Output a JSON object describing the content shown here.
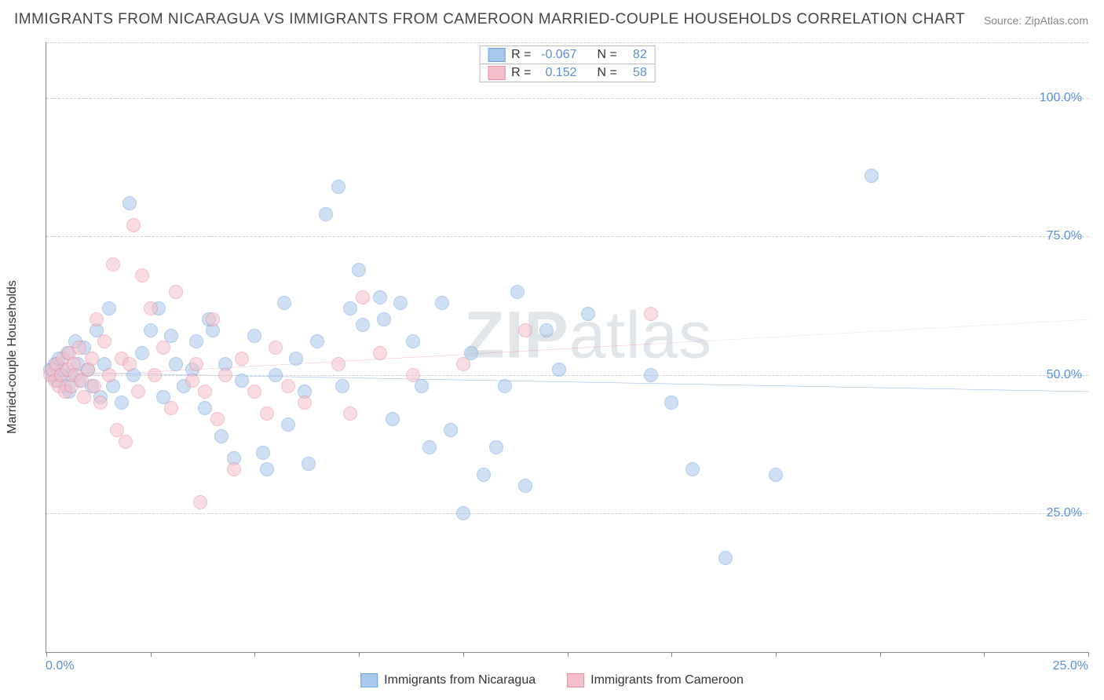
{
  "title": "IMMIGRANTS FROM NICARAGUA VS IMMIGRANTS FROM CAMEROON MARRIED-COUPLE HOUSEHOLDS CORRELATION CHART",
  "source": "Source: ZipAtlas.com",
  "y_axis_title": "Married-couple Households",
  "watermark_bold": "ZIP",
  "watermark_light": "atlas",
  "chart": {
    "type": "scatter",
    "xlim": [
      0,
      25
    ],
    "ylim": [
      0,
      110
    ],
    "x_ticks": [
      0,
      2.5,
      5,
      7.5,
      10,
      12.5,
      15,
      17.5,
      20,
      22.5,
      25
    ],
    "x_tick_labels": {
      "0": "0.0%",
      "25": "25.0%"
    },
    "y_gridlines": [
      25,
      50,
      75,
      100,
      110
    ],
    "y_tick_labels": {
      "25": "25.0%",
      "50": "50.0%",
      "75": "75.0%",
      "100": "100.0%"
    },
    "background_color": "#ffffff",
    "grid_color": "#cccccc",
    "axis_color": "#888888",
    "tick_label_color": "#5b8fd6",
    "marker_radius": 9,
    "marker_opacity": 0.55,
    "series": [
      {
        "name": "Immigrants from Nicaragua",
        "fill_color": "#a8c8ec",
        "stroke_color": "#6fa3db",
        "R": "-0.067",
        "N": "82",
        "trend": {
          "y_start": 50.5,
          "y_end": 47.0,
          "solid_until_x": 25,
          "line_color": "#3b78c9",
          "line_width": 2.5
        },
        "points": [
          [
            0.1,
            51
          ],
          [
            0.15,
            50
          ],
          [
            0.2,
            52
          ],
          [
            0.25,
            49
          ],
          [
            0.3,
            53
          ],
          [
            0.35,
            50
          ],
          [
            0.4,
            51
          ],
          [
            0.45,
            48
          ],
          [
            0.5,
            54
          ],
          [
            0.55,
            47
          ],
          [
            0.6,
            50
          ],
          [
            0.7,
            56
          ],
          [
            0.75,
            52
          ],
          [
            0.8,
            49
          ],
          [
            0.9,
            55
          ],
          [
            1.0,
            51
          ],
          [
            1.1,
            48
          ],
          [
            1.2,
            58
          ],
          [
            1.3,
            46
          ],
          [
            1.4,
            52
          ],
          [
            1.5,
            62
          ],
          [
            1.6,
            48
          ],
          [
            1.8,
            45
          ],
          [
            2.0,
            81
          ],
          [
            2.1,
            50
          ],
          [
            2.3,
            54
          ],
          [
            2.5,
            58
          ],
          [
            2.7,
            62
          ],
          [
            2.8,
            46
          ],
          [
            3.0,
            57
          ],
          [
            3.1,
            52
          ],
          [
            3.3,
            48
          ],
          [
            3.5,
            51
          ],
          [
            3.6,
            56
          ],
          [
            3.8,
            44
          ],
          [
            4.0,
            58
          ],
          [
            4.2,
            39
          ],
          [
            4.3,
            52
          ],
          [
            4.5,
            35
          ],
          [
            4.7,
            49
          ],
          [
            5.0,
            57
          ],
          [
            5.2,
            36
          ],
          [
            5.5,
            50
          ],
          [
            5.7,
            63
          ],
          [
            5.8,
            41
          ],
          [
            6.0,
            53
          ],
          [
            6.2,
            47
          ],
          [
            6.3,
            34
          ],
          [
            6.5,
            56
          ],
          [
            6.7,
            79
          ],
          [
            7.0,
            84
          ],
          [
            7.1,
            48
          ],
          [
            7.3,
            62
          ],
          [
            7.5,
            69
          ],
          [
            7.6,
            59
          ],
          [
            8.0,
            64
          ],
          [
            8.1,
            60
          ],
          [
            8.3,
            42
          ],
          [
            8.5,
            63
          ],
          [
            8.8,
            56
          ],
          [
            9.0,
            48
          ],
          [
            9.2,
            37
          ],
          [
            9.5,
            63
          ],
          [
            9.7,
            40
          ],
          [
            10.0,
            25
          ],
          [
            10.2,
            54
          ],
          [
            10.5,
            32
          ],
          [
            10.8,
            37
          ],
          [
            11.0,
            48
          ],
          [
            11.3,
            65
          ],
          [
            11.5,
            30
          ],
          [
            12.0,
            58
          ],
          [
            12.3,
            51
          ],
          [
            13.0,
            61
          ],
          [
            14.5,
            50
          ],
          [
            15.0,
            45
          ],
          [
            15.5,
            33
          ],
          [
            16.3,
            17
          ],
          [
            17.5,
            32
          ],
          [
            19.8,
            86
          ],
          [
            5.3,
            33
          ],
          [
            3.9,
            60
          ]
        ]
      },
      {
        "name": "Immigrants from Cameroon",
        "fill_color": "#f5c0cb",
        "stroke_color": "#e88ba0",
        "R": "0.152",
        "N": "58",
        "trend": {
          "y_start": 49.5,
          "y_end": 60.0,
          "solid_until_x": 14.5,
          "line_color": "#e36b8a",
          "line_width": 2
        },
        "points": [
          [
            0.1,
            50
          ],
          [
            0.15,
            51
          ],
          [
            0.2,
            49
          ],
          [
            0.25,
            52
          ],
          [
            0.3,
            48
          ],
          [
            0.35,
            50
          ],
          [
            0.4,
            53
          ],
          [
            0.45,
            47
          ],
          [
            0.5,
            51
          ],
          [
            0.55,
            54
          ],
          [
            0.6,
            48
          ],
          [
            0.65,
            52
          ],
          [
            0.7,
            50
          ],
          [
            0.8,
            55
          ],
          [
            0.85,
            49
          ],
          [
            0.9,
            46
          ],
          [
            1.0,
            51
          ],
          [
            1.1,
            53
          ],
          [
            1.15,
            48
          ],
          [
            1.2,
            60
          ],
          [
            1.3,
            45
          ],
          [
            1.4,
            56
          ],
          [
            1.5,
            50
          ],
          [
            1.6,
            70
          ],
          [
            1.7,
            40
          ],
          [
            1.8,
            53
          ],
          [
            1.9,
            38
          ],
          [
            2.0,
            52
          ],
          [
            2.1,
            77
          ],
          [
            2.2,
            47
          ],
          [
            2.3,
            68
          ],
          [
            2.5,
            62
          ],
          [
            2.6,
            50
          ],
          [
            2.8,
            55
          ],
          [
            3.0,
            44
          ],
          [
            3.1,
            65
          ],
          [
            3.5,
            49
          ],
          [
            3.6,
            52
          ],
          [
            3.7,
            27
          ],
          [
            3.8,
            47
          ],
          [
            4.0,
            60
          ],
          [
            4.1,
            42
          ],
          [
            4.3,
            50
          ],
          [
            4.5,
            33
          ],
          [
            4.7,
            53
          ],
          [
            5.0,
            47
          ],
          [
            5.3,
            43
          ],
          [
            5.5,
            55
          ],
          [
            5.8,
            48
          ],
          [
            6.2,
            45
          ],
          [
            7.0,
            52
          ],
          [
            7.3,
            43
          ],
          [
            7.6,
            64
          ],
          [
            8.0,
            54
          ],
          [
            8.8,
            50
          ],
          [
            10.0,
            52
          ],
          [
            11.5,
            58
          ],
          [
            14.5,
            61
          ]
        ]
      }
    ]
  },
  "legend_labels": {
    "r_prefix": "R =",
    "n_prefix": "N ="
  }
}
